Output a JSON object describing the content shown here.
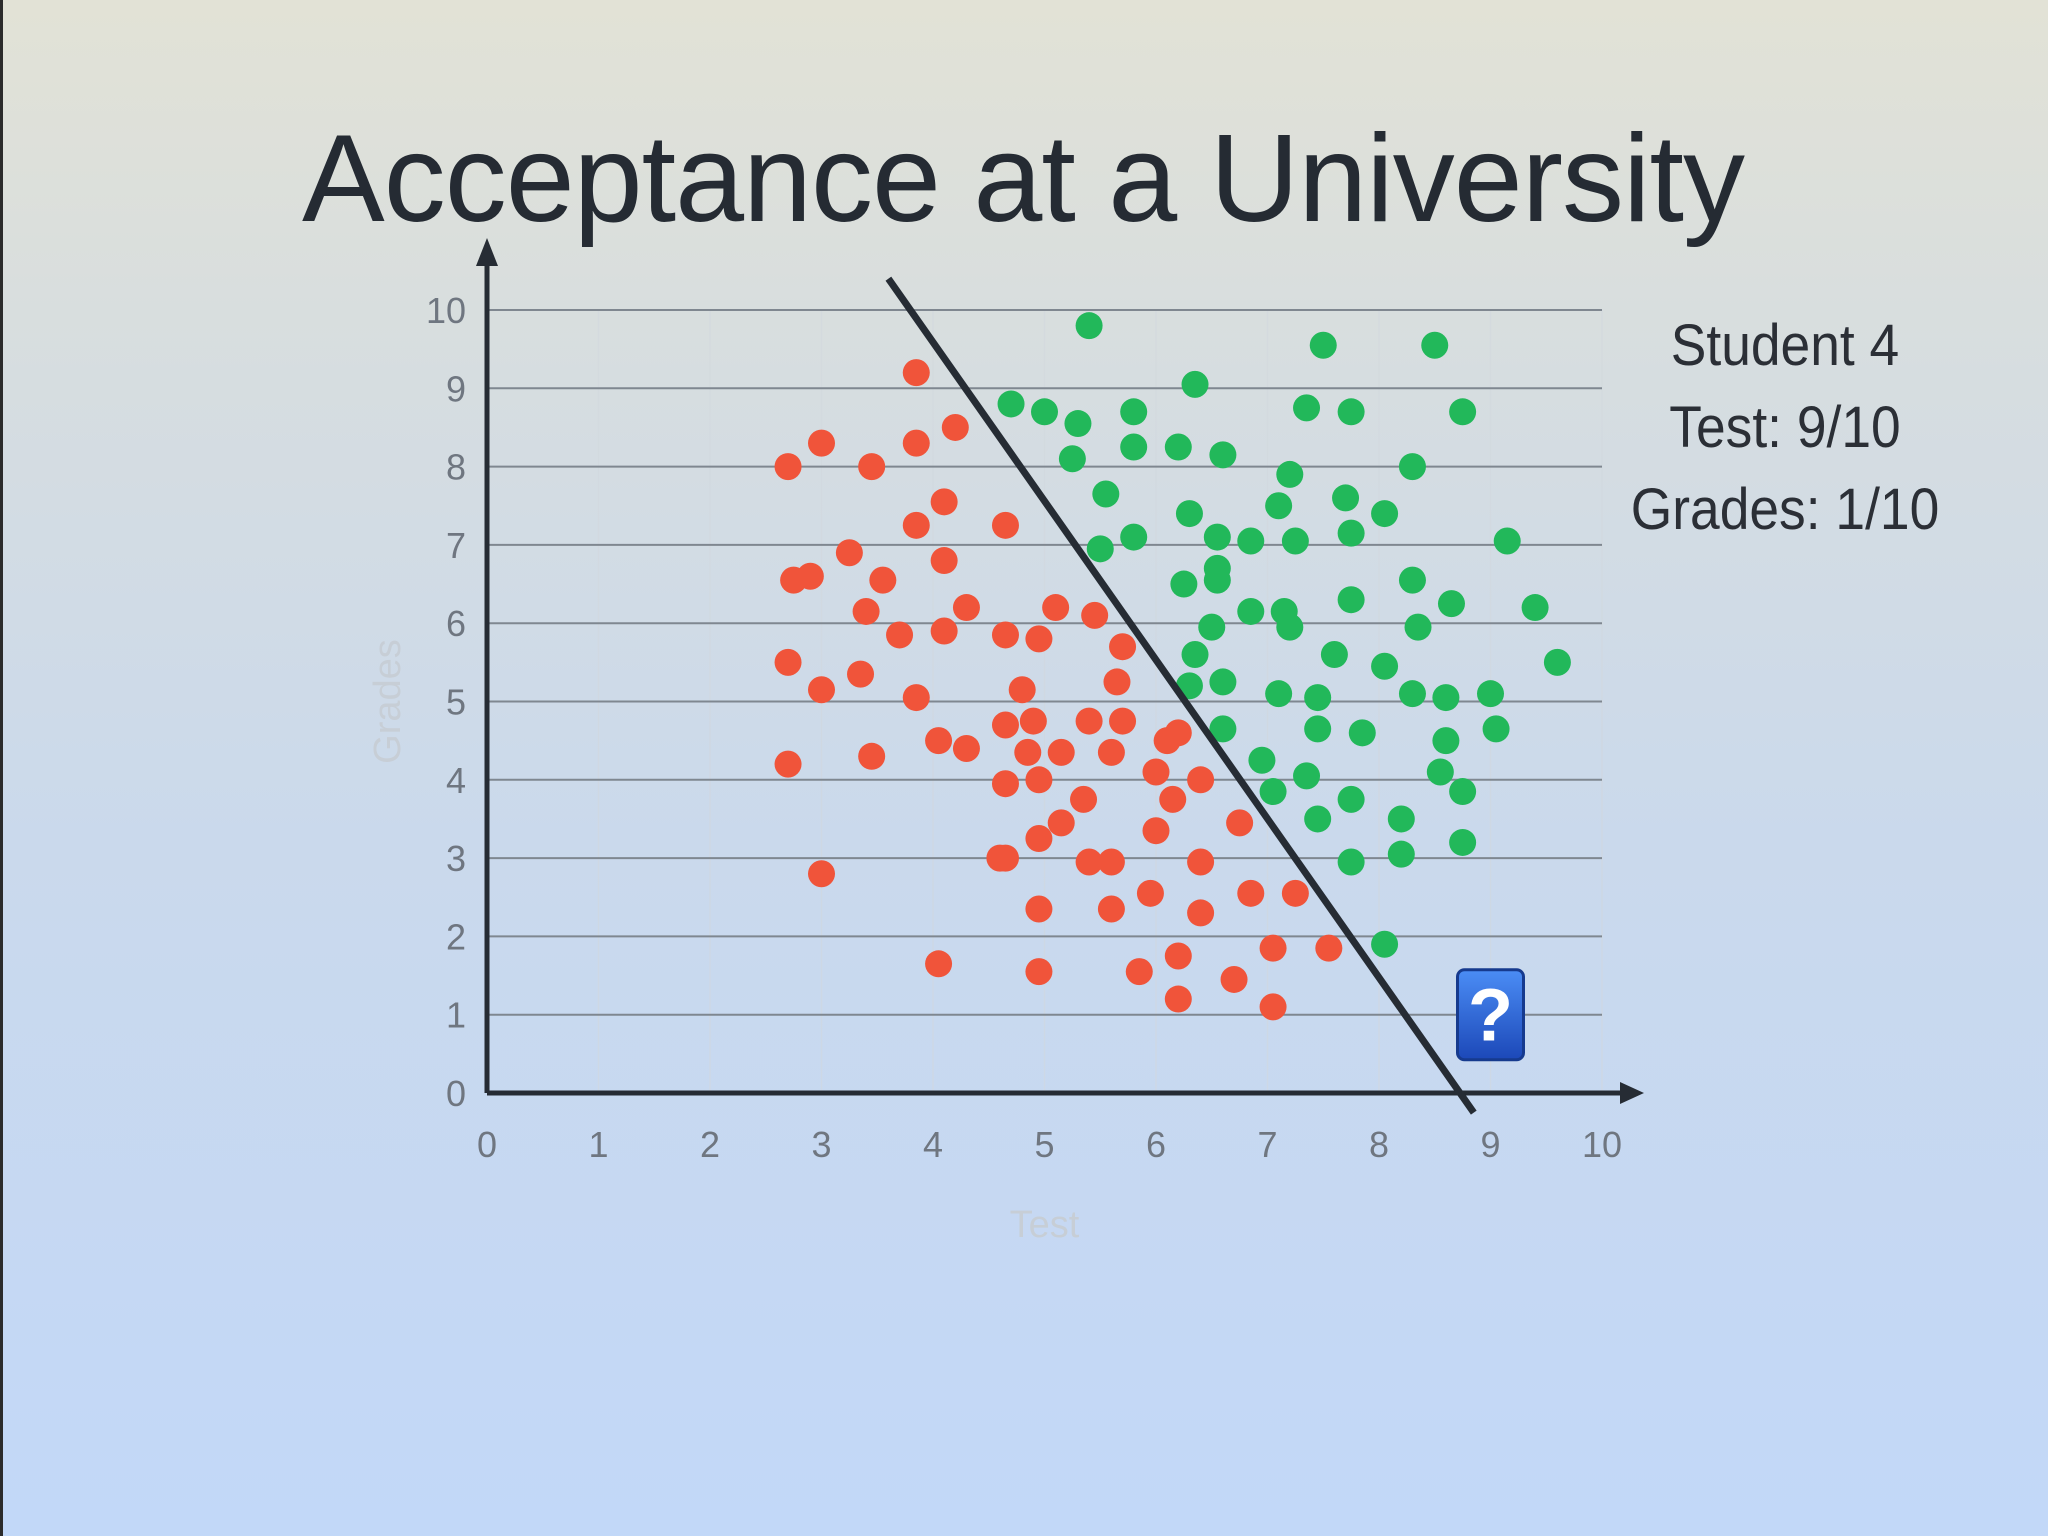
{
  "title": "Acceptance at a University",
  "student": {
    "name": "Student 4",
    "test": "Test: 9/10",
    "grades": "Grades: 1/10"
  },
  "question_icon": "question-mark-icon",
  "chart_data": {
    "type": "scatter",
    "xlabel": "Test",
    "ylabel": "Grades",
    "xlim": [
      0,
      10
    ],
    "ylim": [
      0,
      10
    ],
    "x_ticks": [
      "0",
      "1",
      "2",
      "3",
      "4",
      "5",
      "6",
      "7",
      "8",
      "9",
      "10"
    ],
    "y_ticks": [
      "0",
      "1",
      "2",
      "3",
      "4",
      "5",
      "6",
      "7",
      "8",
      "9",
      "10"
    ],
    "grid": "horizontal",
    "colors": {
      "rejected": "#f0543a",
      "accepted": "#22b85a",
      "line": "#262c34",
      "question": "#2a66d8"
    },
    "boundary": [
      [
        3.6,
        10.4
      ],
      [
        8.85,
        -0.25
      ]
    ],
    "query_point": {
      "x": 9,
      "y": 1
    },
    "series": [
      {
        "values": [
          [
            2.7,
            8.0
          ],
          [
            3.0,
            8.3
          ],
          [
            3.45,
            8.0
          ],
          [
            3.85,
            9.2
          ],
          [
            3.85,
            8.3
          ],
          [
            4.2,
            8.5
          ],
          [
            4.1,
            7.55
          ],
          [
            3.85,
            7.25
          ],
          [
            4.1,
            6.8
          ],
          [
            2.75,
            6.55
          ],
          [
            2.9,
            6.6
          ],
          [
            3.25,
            6.9
          ],
          [
            3.4,
            6.15
          ],
          [
            3.55,
            6.55
          ],
          [
            3.7,
            5.85
          ],
          [
            4.1,
            5.9
          ],
          [
            4.3,
            6.2
          ],
          [
            2.7,
            5.5
          ],
          [
            3.0,
            5.15
          ],
          [
            3.35,
            5.35
          ],
          [
            3.85,
            5.05
          ],
          [
            4.05,
            4.5
          ],
          [
            4.3,
            4.4
          ],
          [
            3.45,
            4.3
          ],
          [
            2.7,
            4.2
          ],
          [
            3.0,
            2.8
          ],
          [
            4.65,
            7.25
          ],
          [
            4.65,
            5.85
          ],
          [
            4.95,
            5.8
          ],
          [
            5.1,
            6.2
          ],
          [
            5.45,
            6.1
          ],
          [
            5.7,
            5.7
          ],
          [
            5.65,
            5.25
          ],
          [
            4.8,
            5.15
          ],
          [
            4.65,
            4.7
          ],
          [
            4.9,
            4.75
          ],
          [
            4.85,
            4.35
          ],
          [
            5.15,
            4.35
          ],
          [
            5.4,
            4.75
          ],
          [
            5.7,
            4.75
          ],
          [
            5.6,
            4.35
          ],
          [
            4.65,
            3.95
          ],
          [
            4.95,
            4.0
          ],
          [
            5.35,
            3.75
          ],
          [
            5.15,
            3.45
          ],
          [
            4.95,
            3.25
          ],
          [
            4.6,
            3.0
          ],
          [
            4.65,
            3.0
          ],
          [
            5.4,
            2.95
          ],
          [
            5.6,
            2.95
          ],
          [
            5.6,
            2.35
          ],
          [
            4.95,
            2.35
          ],
          [
            6.1,
            4.5
          ],
          [
            6.0,
            4.1
          ],
          [
            6.15,
            3.75
          ],
          [
            6.0,
            3.35
          ],
          [
            6.2,
            4.6
          ],
          [
            6.4,
            4.0
          ],
          [
            6.75,
            3.45
          ],
          [
            6.4,
            2.95
          ],
          [
            6.85,
            2.55
          ],
          [
            6.4,
            2.3
          ],
          [
            5.95,
            2.55
          ],
          [
            7.25,
            2.55
          ],
          [
            7.05,
            1.85
          ],
          [
            7.55,
            1.85
          ],
          [
            6.2,
            1.75
          ],
          [
            5.85,
            1.55
          ],
          [
            6.7,
            1.45
          ],
          [
            6.2,
            1.2
          ],
          [
            7.05,
            1.1
          ],
          [
            4.05,
            1.65
          ],
          [
            4.95,
            1.55
          ]
        ]
      },
      {
        "values": [
          [
            5.4,
            9.8
          ],
          [
            4.7,
            8.8
          ],
          [
            5.0,
            8.7
          ],
          [
            5.3,
            8.55
          ],
          [
            5.8,
            8.7
          ],
          [
            5.25,
            8.1
          ],
          [
            5.8,
            8.25
          ],
          [
            6.35,
            9.05
          ],
          [
            6.2,
            8.25
          ],
          [
            6.6,
            8.15
          ],
          [
            5.55,
            7.65
          ],
          [
            5.8,
            7.1
          ],
          [
            5.5,
            6.95
          ],
          [
            6.3,
            7.4
          ],
          [
            6.55,
            7.1
          ],
          [
            6.85,
            7.05
          ],
          [
            6.25,
            6.5
          ],
          [
            6.55,
            6.7
          ],
          [
            6.55,
            6.55
          ],
          [
            6.85,
            6.15
          ],
          [
            6.5,
            5.95
          ],
          [
            6.35,
            5.6
          ],
          [
            6.3,
            5.2
          ],
          [
            6.6,
            5.25
          ],
          [
            7.5,
            9.55
          ],
          [
            8.5,
            9.55
          ],
          [
            7.35,
            8.75
          ],
          [
            7.75,
            8.7
          ],
          [
            8.75,
            8.7
          ],
          [
            7.2,
            7.9
          ],
          [
            7.1,
            7.5
          ],
          [
            7.25,
            7.05
          ],
          [
            7.7,
            7.6
          ],
          [
            7.75,
            7.15
          ],
          [
            8.05,
            7.4
          ],
          [
            8.3,
            8.0
          ],
          [
            7.15,
            6.15
          ],
          [
            7.2,
            5.95
          ],
          [
            7.75,
            6.3
          ],
          [
            8.3,
            6.55
          ],
          [
            8.35,
            5.95
          ],
          [
            8.65,
            6.25
          ],
          [
            7.6,
            5.6
          ],
          [
            8.05,
            5.45
          ],
          [
            7.1,
            5.1
          ],
          [
            7.45,
            5.05
          ],
          [
            8.3,
            5.1
          ],
          [
            8.6,
            5.05
          ],
          [
            9.0,
            5.1
          ],
          [
            9.05,
            4.65
          ],
          [
            9.6,
            5.5
          ],
          [
            9.4,
            6.2
          ],
          [
            9.15,
            7.05
          ],
          [
            6.6,
            4.65
          ],
          [
            7.45,
            4.65
          ],
          [
            7.85,
            4.6
          ],
          [
            8.6,
            4.5
          ],
          [
            6.95,
            4.25
          ],
          [
            7.05,
            3.85
          ],
          [
            7.35,
            4.05
          ],
          [
            7.75,
            3.75
          ],
          [
            8.55,
            4.1
          ],
          [
            8.75,
            3.85
          ],
          [
            7.45,
            3.5
          ],
          [
            8.2,
            3.5
          ],
          [
            7.75,
            2.95
          ],
          [
            8.2,
            3.05
          ],
          [
            8.75,
            3.2
          ],
          [
            8.05,
            1.9
          ]
        ]
      }
    ]
  }
}
